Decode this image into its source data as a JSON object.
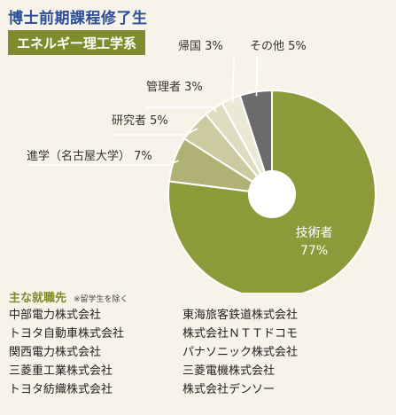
{
  "header": {
    "title": "博士前期課程修了生",
    "subtitle": "エネルギー理工学系"
  },
  "chart_data": {
    "type": "pie",
    "title": "",
    "slices": [
      {
        "label": "技術者",
        "value": 77,
        "display": "77%",
        "color": "#8c9a3a"
      },
      {
        "label": "進学（名古屋大学）",
        "value": 7,
        "display": "7%",
        "color": "#b0b174"
      },
      {
        "label": "研究者",
        "value": 5,
        "display": "5%",
        "color": "#cccaa0"
      },
      {
        "label": "管理者",
        "value": 3,
        "display": "3%",
        "color": "#dedcc0"
      },
      {
        "label": "帰国",
        "value": 3,
        "display": "3%",
        "color": "#ebe8d6"
      },
      {
        "label": "その他",
        "value": 5,
        "display": "5%",
        "color": "#6b6b6b"
      }
    ]
  },
  "employers": {
    "heading": "主な就職先",
    "note": "※留学生を除く",
    "companies": [
      "中部電力株式会社",
      "東海旅客鉄道株式会社",
      "トヨタ自動車株式会社",
      "株式会社ＮＴＴドコモ",
      "関西電力株式会社",
      "パナソニック株式会社",
      "三菱重工業株式会社",
      "三菱電機株式会社",
      "トヨタ紡織株式会社",
      "株式会社デンソー"
    ]
  }
}
